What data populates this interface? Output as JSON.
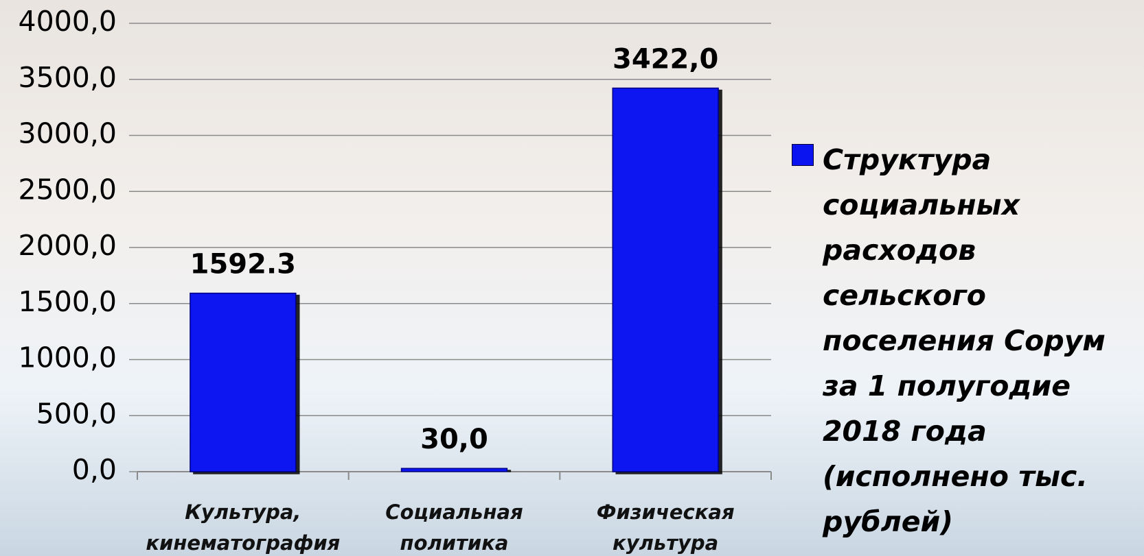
{
  "chart_data": {
    "type": "bar",
    "categories": [
      "Культура, кинематография",
      "Социальная политика",
      "Физическая культура"
    ],
    "series": [
      {
        "name": "Структура социальных расходов сельского поселения Сорум за 1 полугодие 2018 года (исполнено тыс. рублей)",
        "color": "#0a14f0",
        "values": [
          1592.3,
          30.0,
          3422.0
        ],
        "value_labels": [
          "1592.3",
          "30,0",
          "3422,0"
        ]
      }
    ],
    "ylim": [
      0,
      4000
    ],
    "yticks": [
      {
        "value": 0,
        "label": "0,0"
      },
      {
        "value": 500,
        "label": "500,0"
      },
      {
        "value": 1000,
        "label": "1000,0"
      },
      {
        "value": 1500,
        "label": "1500,0"
      },
      {
        "value": 2000,
        "label": "2000,0"
      },
      {
        "value": 2500,
        "label": "2500,0"
      },
      {
        "value": 3000,
        "label": "3000,0"
      },
      {
        "value": 3500,
        "label": "3500,0"
      },
      {
        "value": 4000,
        "label": "4000,0"
      }
    ],
    "grid": true,
    "legend": "right"
  }
}
